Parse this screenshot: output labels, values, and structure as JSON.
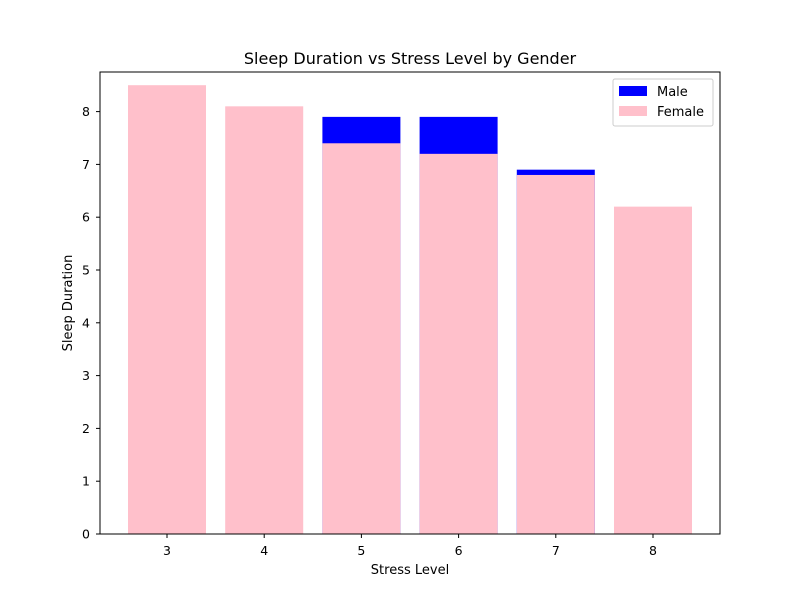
{
  "chart_data": {
    "type": "bar",
    "title": "Sleep Duration vs Stress Level by Gender",
    "xlabel": "Stress Level",
    "ylabel": "Sleep Duration",
    "categories": [
      "3",
      "4",
      "5",
      "6",
      "7",
      "8"
    ],
    "ylim": [
      0,
      8.75
    ],
    "yticks": [
      "0",
      "1",
      "2",
      "3",
      "4",
      "5",
      "6",
      "7",
      "8"
    ],
    "series": [
      {
        "name": "Male",
        "color": "#0000ff",
        "values": [
          null,
          null,
          7.9,
          7.9,
          6.9,
          null
        ]
      },
      {
        "name": "Female",
        "color": "#ffc0cb",
        "values": [
          8.5,
          8.1,
          7.4,
          7.2,
          6.8,
          6.2
        ]
      }
    ],
    "legend": "top-right",
    "grid": false
  }
}
